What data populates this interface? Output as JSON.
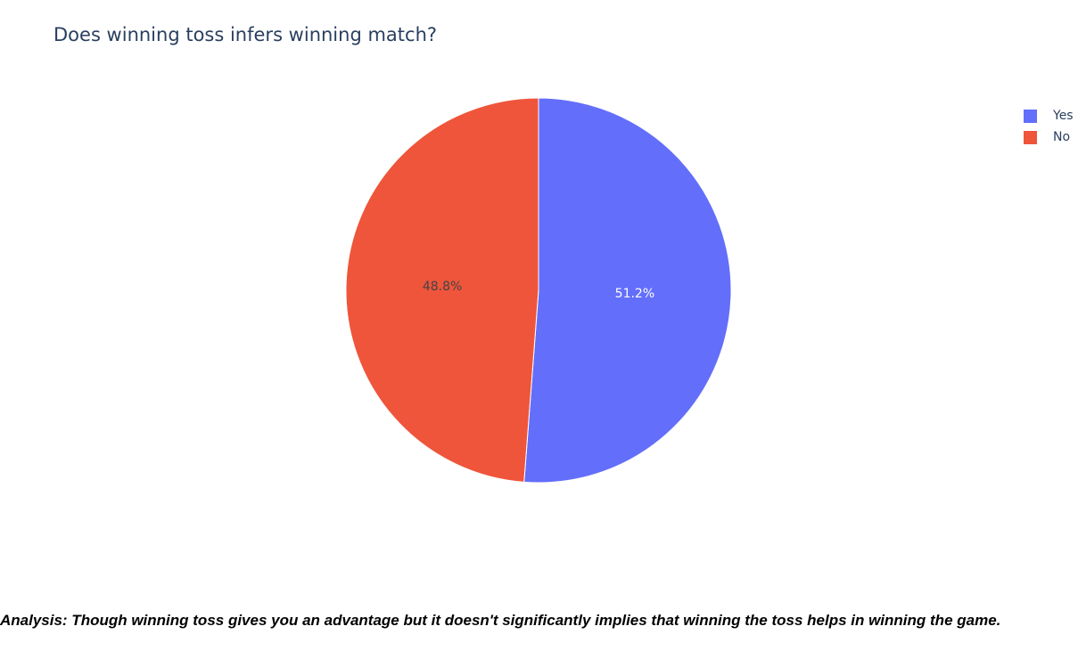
{
  "chart_data": {
    "type": "pie",
    "title": "Does winning toss infers winning match?",
    "categories": [
      "Yes",
      "No"
    ],
    "values": [
      51.2,
      48.8
    ],
    "labels": [
      "51.2%",
      "48.8%"
    ],
    "colors": [
      "#636efa",
      "#ef553b"
    ],
    "label_colors": [
      "#ffffff",
      "#444444"
    ],
    "legend": {
      "placement": "top-right",
      "entries": [
        "Yes",
        "No"
      ]
    }
  },
  "analysis_text": "Analysis: Though winning toss gives you an advantage but it doesn't significantly implies that winning the toss helps in winning the game."
}
